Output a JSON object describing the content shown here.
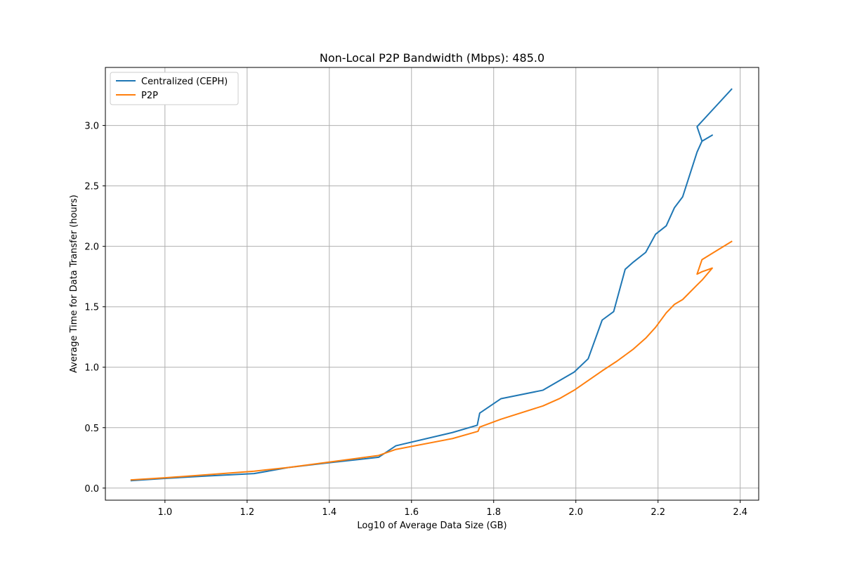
{
  "chart_data": {
    "type": "line",
    "title": "Non-Local P2P Bandwidth (Mbps): 485.0",
    "xlabel": "Log10 of Average Data Size (GB)",
    "ylabel": "Average Time for Data Transfer (hours)",
    "xlim": [
      0.855,
      2.445
    ],
    "ylim": [
      -0.1,
      3.48
    ],
    "xticks": [
      1.0,
      1.2,
      1.4,
      1.6,
      1.8,
      2.0,
      2.2,
      2.4
    ],
    "xtick_labels": [
      "1.0",
      "1.2",
      "1.4",
      "1.6",
      "1.8",
      "2.0",
      "2.2",
      "2.4"
    ],
    "yticks": [
      0.0,
      0.5,
      1.0,
      1.5,
      2.0,
      2.5,
      3.0
    ],
    "ytick_labels": [
      "0.0",
      "0.5",
      "1.0",
      "1.5",
      "2.0",
      "2.5",
      "3.0"
    ],
    "grid": true,
    "legend_position": "upper-left",
    "series": [
      {
        "name": "Centralized (CEPH)",
        "color": "#1f77b4",
        "x": [
          0.918,
          1.0,
          1.1,
          1.217,
          1.3,
          1.4,
          1.52,
          1.562,
          1.7,
          1.76,
          1.766,
          1.818,
          1.92,
          1.996,
          2.03,
          2.064,
          2.092,
          2.12,
          2.14,
          2.17,
          2.194,
          2.22,
          2.24,
          2.26,
          2.295,
          2.307,
          2.332,
          2.307,
          2.295,
          2.379
        ],
        "y": [
          0.062,
          0.08,
          0.1,
          0.12,
          0.17,
          0.21,
          0.255,
          0.35,
          0.46,
          0.52,
          0.62,
          0.74,
          0.81,
          0.96,
          1.07,
          1.39,
          1.46,
          1.81,
          1.87,
          1.95,
          2.1,
          2.17,
          2.32,
          2.41,
          2.78,
          2.87,
          2.92,
          2.87,
          2.99,
          3.3
        ]
      },
      {
        "name": "P2P",
        "color": "#ff7f0e",
        "x": [
          0.918,
          1.0,
          1.1,
          1.217,
          1.3,
          1.4,
          1.52,
          1.562,
          1.7,
          1.762,
          1.766,
          1.818,
          1.92,
          1.96,
          1.996,
          2.03,
          2.064,
          2.1,
          2.14,
          2.17,
          2.194,
          2.22,
          2.24,
          2.26,
          2.295,
          2.307,
          2.332,
          2.307,
          2.295,
          2.307,
          2.379
        ],
        "y": [
          0.068,
          0.085,
          0.11,
          0.14,
          0.17,
          0.215,
          0.27,
          0.32,
          0.41,
          0.47,
          0.505,
          0.57,
          0.68,
          0.74,
          0.81,
          0.89,
          0.97,
          1.05,
          1.15,
          1.24,
          1.33,
          1.45,
          1.52,
          1.56,
          1.68,
          1.72,
          1.82,
          1.79,
          1.77,
          1.89,
          2.04
        ]
      }
    ]
  }
}
